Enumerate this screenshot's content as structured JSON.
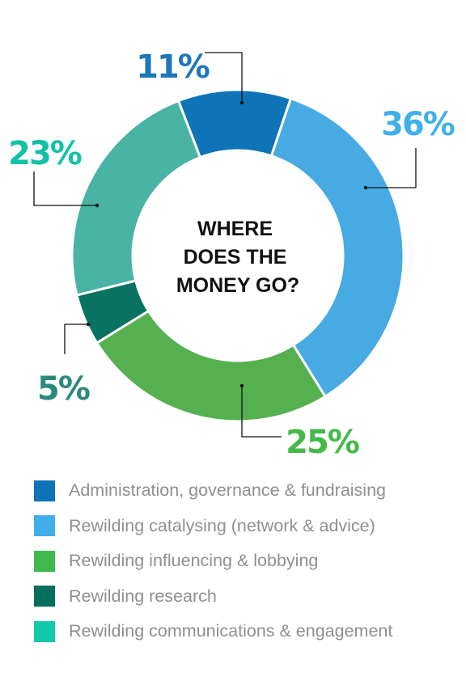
{
  "chart_data": {
    "type": "pie",
    "variant": "donut",
    "title": "WHERE DOES THE MONEY GO?",
    "title_lines": [
      "WHERE",
      "DOES THE",
      "MONEY GO?"
    ],
    "legend_position": "bottom",
    "slices": [
      {
        "label": "Administration, governance & fundraising",
        "value": 11,
        "display": "11%",
        "color": "#0f73b8",
        "label_color": "#1f77b9"
      },
      {
        "label": "Rewilding catalysing (network & advice)",
        "value": 36,
        "display": "36%",
        "color": "#47aae2",
        "label_color": "#3fb0ea"
      },
      {
        "label": "Rewilding influencing & lobbying",
        "value": 25,
        "display": "25%",
        "color": "#55b04f",
        "label_color": "#44b94a"
      },
      {
        "label": "Rewilding research",
        "value": 5,
        "display": "5%",
        "color": "#0a7261",
        "label_color": "#2a8a7a"
      },
      {
        "label": "Rewilding communications & engagement",
        "value": 23,
        "display": "23%",
        "color": "#49b3a4",
        "label_color": "#12c1a6"
      }
    ]
  },
  "legend": {
    "items": [
      {
        "label": "Administration, governance & fundraising",
        "color": "#0f73b8"
      },
      {
        "label": "Rewilding catalysing (network & advice)",
        "color": "#41aee9"
      },
      {
        "label": "Rewilding influencing & lobbying",
        "color": "#3fba4a"
      },
      {
        "label": "Rewilding research",
        "color": "#076f5e"
      },
      {
        "label": "Rewilding communications & engagement",
        "color": "#12c7aa"
      }
    ]
  }
}
